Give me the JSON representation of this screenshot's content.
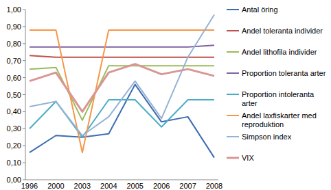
{
  "chart_data": {
    "type": "line",
    "categories": [
      "1996",
      "2000",
      "2003",
      "2004",
      "2005",
      "2006",
      "2007",
      "2008"
    ],
    "series": [
      {
        "name": "Antal öring",
        "color": "#3c6db0",
        "values": [
          0.16,
          0.26,
          0.25,
          0.27,
          0.56,
          0.34,
          0.37,
          0.13
        ]
      },
      {
        "name": "Andel toleranta individer",
        "color": "#c0504d",
        "values": [
          0.73,
          0.72,
          0.72,
          0.72,
          0.72,
          0.72,
          0.72,
          0.72
        ]
      },
      {
        "name": "Andel lithofila individer",
        "color": "#9bbb59",
        "values": [
          0.65,
          0.66,
          0.35,
          0.67,
          0.67,
          0.67,
          0.67,
          0.67
        ]
      },
      {
        "name": "Proportion toleranta arter",
        "color": "#8064a2",
        "values": [
          0.78,
          0.78,
          0.78,
          0.78,
          0.78,
          0.78,
          0.78,
          0.79
        ]
      },
      {
        "name": "Proportion intoleranta arter",
        "color": "#4bacc6",
        "values": [
          0.3,
          0.46,
          0.25,
          0.47,
          0.47,
          0.31,
          0.47,
          0.47
        ]
      },
      {
        "name": "Andel laxfiskarter med reproduktion",
        "color": "#f79646",
        "values": [
          0.88,
          0.88,
          0.16,
          0.88,
          0.88,
          0.88,
          0.88,
          0.88
        ]
      },
      {
        "name": "Simpson index",
        "color": "#95b3d7",
        "values": [
          0.43,
          0.46,
          0.26,
          0.37,
          0.58,
          0.36,
          0.72,
          0.97
        ]
      },
      {
        "name": "VIX",
        "color": "#d99694",
        "values": [
          0.58,
          0.63,
          0.4,
          0.63,
          0.68,
          0.62,
          0.65,
          0.61
        ]
      }
    ],
    "ylim": [
      0,
      1
    ],
    "yticks": [
      {
        "value": 0,
        "label": "0,00"
      },
      {
        "value": 0.1,
        "label": "0,10"
      },
      {
        "value": 0.2,
        "label": "0,20"
      },
      {
        "value": 0.3,
        "label": "0,30"
      },
      {
        "value": 0.4,
        "label": "0,40"
      },
      {
        "value": 0.5,
        "label": "0,50"
      },
      {
        "value": 0.6,
        "label": "0,60"
      },
      {
        "value": 0.7,
        "label": "0,70"
      },
      {
        "value": 0.8,
        "label": "0,80"
      },
      {
        "value": 0.9,
        "label": "0,90"
      },
      {
        "value": 1,
        "label": "1,00"
      }
    ],
    "grid": false,
    "legend": "right"
  }
}
